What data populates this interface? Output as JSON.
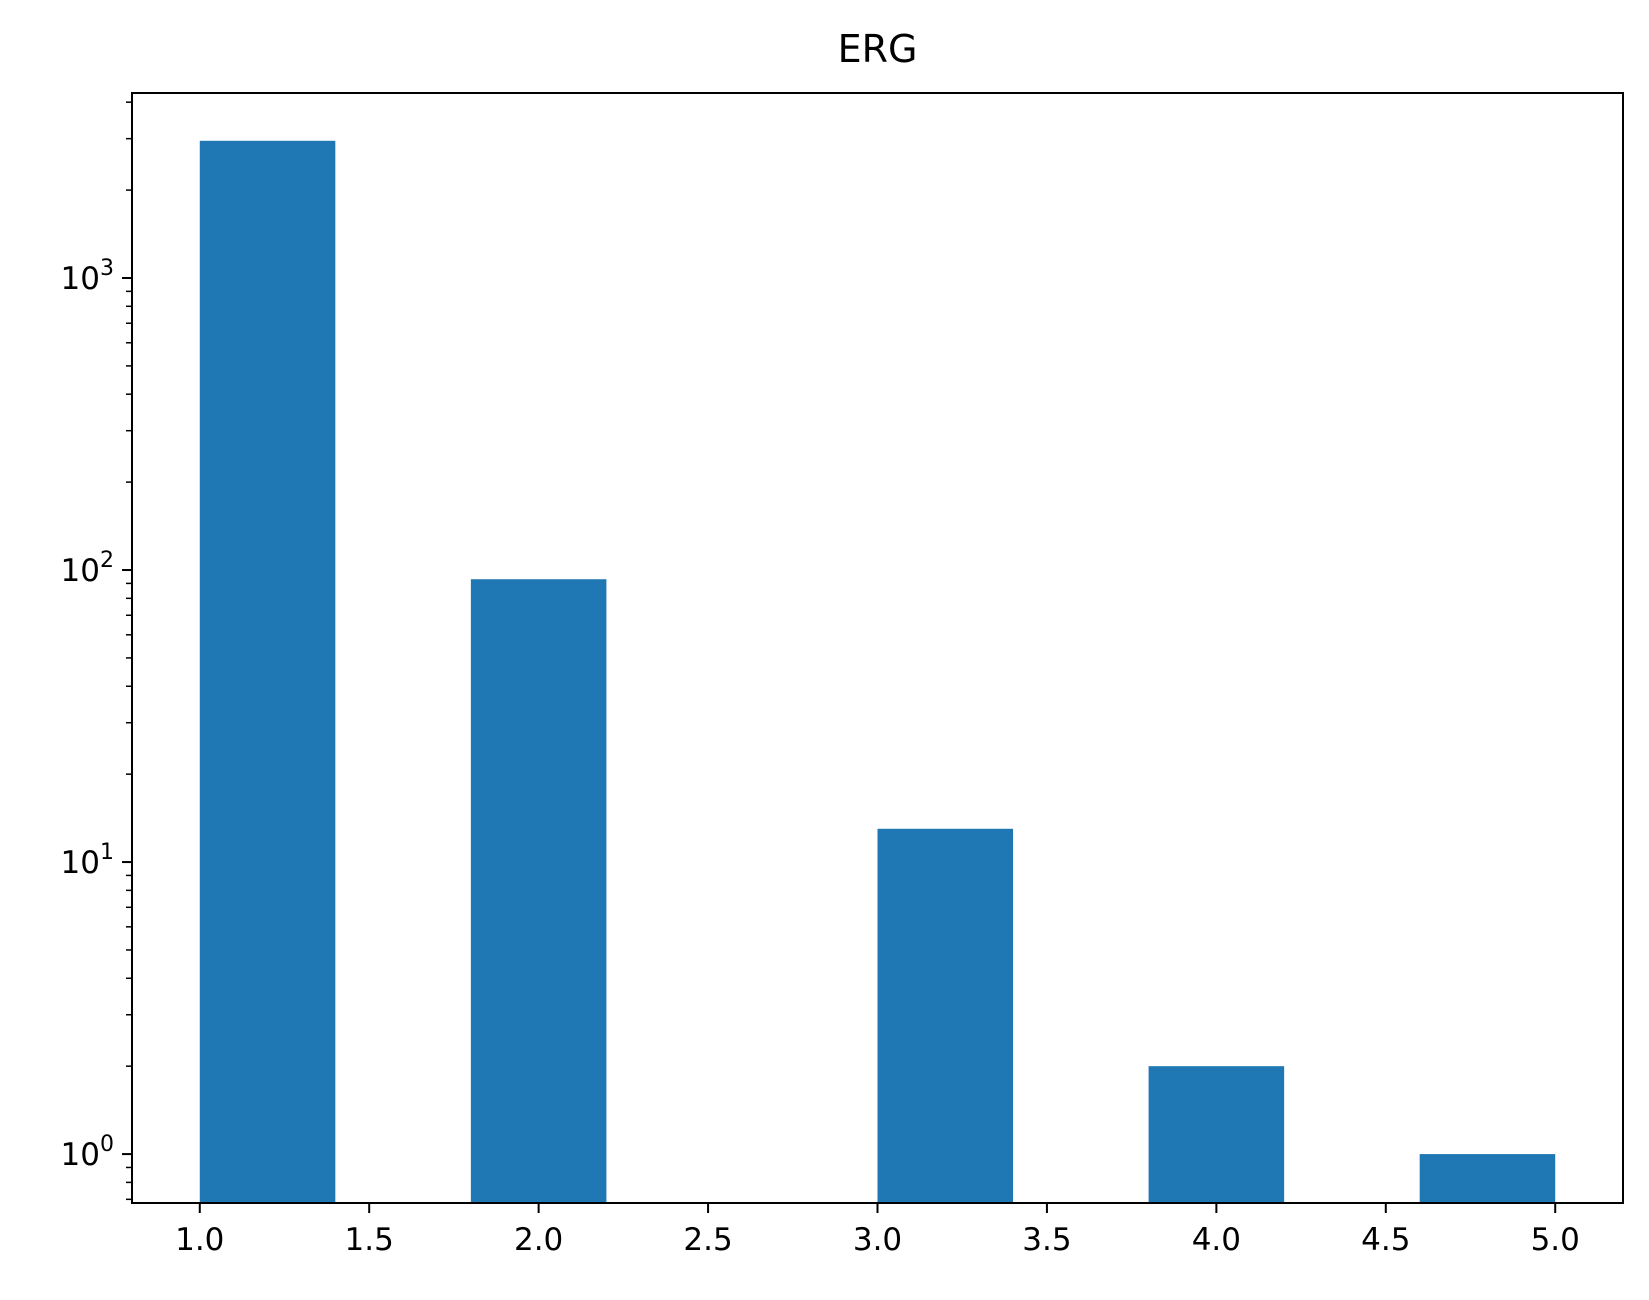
{
  "chart_data": {
    "type": "bar",
    "title": "ERG",
    "xlabel": "",
    "ylabel": "",
    "x_scale": "linear",
    "y_scale": "log",
    "xlim": [
      0.8,
      5.2
    ],
    "ylim": [
      0.68,
      4300
    ],
    "x_ticks": [
      1.0,
      1.5,
      2.0,
      2.5,
      3.0,
      3.5,
      4.0,
      4.5,
      5.0
    ],
    "x_tick_labels": [
      "1.0",
      "1.5",
      "2.0",
      "2.5",
      "3.0",
      "3.5",
      "4.0",
      "4.5",
      "5.0"
    ],
    "y_ticks": [
      1,
      10,
      100,
      1000
    ],
    "y_tick_labels": [
      {
        "base": "10",
        "exp": "0"
      },
      {
        "base": "10",
        "exp": "1"
      },
      {
        "base": "10",
        "exp": "2"
      },
      {
        "base": "10",
        "exp": "3"
      }
    ],
    "grid": false,
    "legend": "none",
    "bar_color": "#1f77b4",
    "bars": [
      {
        "x0": 1.0,
        "x1": 1.4,
        "value": 2950
      },
      {
        "x0": 1.8,
        "x1": 2.2,
        "value": 93
      },
      {
        "x0": 2.2,
        "x1": 2.6,
        "value": 0
      },
      {
        "x0": 2.6,
        "x1": 3.0,
        "value": 0
      },
      {
        "x0": 3.0,
        "x1": 3.4,
        "value": 13
      },
      {
        "x0": 3.8,
        "x1": 4.2,
        "value": 2
      },
      {
        "x0": 4.6,
        "x1": 5.0,
        "value": 1
      }
    ]
  }
}
